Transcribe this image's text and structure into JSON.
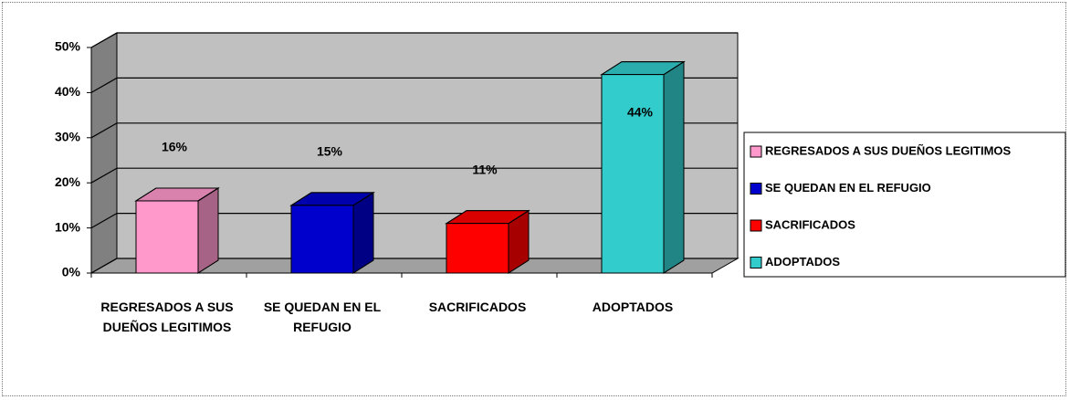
{
  "chart_data": {
    "type": "bar3d",
    "categories": [
      "REGRESADOS A SUS DUEÑOS LEGITIMOS",
      "SE QUEDAN EN EL REFUGIO",
      "SACRIFICADOS",
      "ADOPTADOS"
    ],
    "values": [
      16,
      15,
      11,
      44
    ],
    "value_labels": [
      "16%",
      "15%",
      "11%",
      "44%"
    ],
    "colors": [
      "#ff99cc",
      "#0000cc",
      "#ff0000",
      "#33cccc"
    ],
    "ylim": [
      0,
      50
    ],
    "yticks": [
      {
        "value": 0,
        "label": "0%"
      },
      {
        "value": 10,
        "label": "10%"
      },
      {
        "value": 20,
        "label": "20%"
      },
      {
        "value": 30,
        "label": "30%"
      },
      {
        "value": 40,
        "label": "40%"
      },
      {
        "value": 50,
        "label": "50%"
      }
    ],
    "grid": true,
    "legend": "right"
  }
}
